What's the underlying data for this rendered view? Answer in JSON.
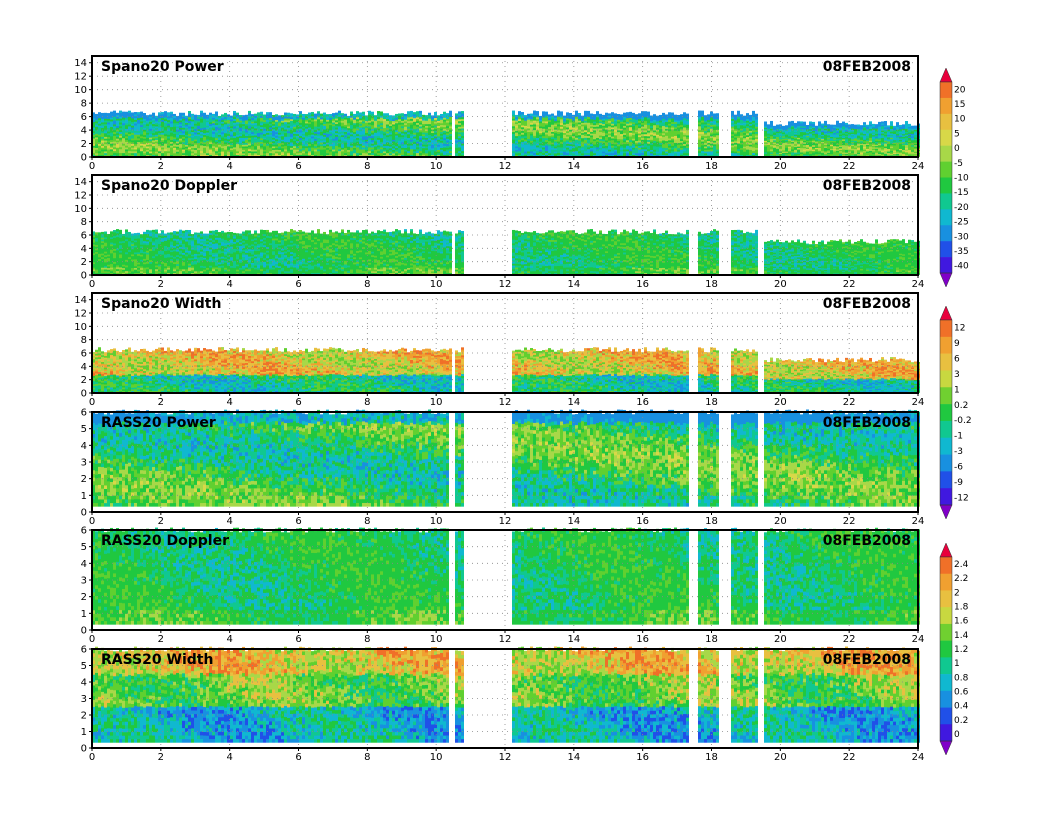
{
  "chart_data": [
    {
      "type": "heatmap",
      "title": "Spano20  Power",
      "date": "08FEB2008",
      "xlim": [
        0,
        24
      ],
      "ylim": [
        0,
        15
      ],
      "xticks": [
        0,
        2,
        4,
        6,
        8,
        10,
        12,
        14,
        16,
        18,
        20,
        22,
        24
      ],
      "yticks": [
        0,
        2,
        4,
        6,
        8,
        10,
        12,
        14
      ],
      "grid": true,
      "top_height": 6.5,
      "data_gaps": [
        [
          10.4,
          10.5
        ],
        [
          10.75,
          12.2
        ],
        [
          17.3,
          17.55
        ],
        [
          18.2,
          18.5
        ],
        [
          19.3,
          19.45
        ]
      ],
      "colorbar": "power_scale"
    },
    {
      "type": "heatmap",
      "title": "Spano20  Doppler",
      "date": "08FEB2008",
      "xlim": [
        0,
        24
      ],
      "ylim": [
        0,
        15
      ],
      "xticks": [
        0,
        2,
        4,
        6,
        8,
        10,
        12,
        14,
        16,
        18,
        20,
        22,
        24
      ],
      "yticks": [
        0,
        2,
        4,
        6,
        8,
        10,
        12,
        14
      ],
      "grid": true,
      "top_height": 6.5,
      "data_gaps": [
        [
          10.4,
          10.5
        ],
        [
          10.75,
          12.2
        ],
        [
          17.3,
          17.55
        ],
        [
          18.2,
          18.5
        ],
        [
          19.3,
          19.45
        ]
      ],
      "colorbar": "power_scale"
    },
    {
      "type": "heatmap",
      "title": "Spano20  Width",
      "date": "08FEB2008",
      "xlim": [
        0,
        24
      ],
      "ylim": [
        0,
        15
      ],
      "xticks": [
        0,
        2,
        4,
        6,
        8,
        10,
        12,
        14,
        16,
        18,
        20,
        22,
        24
      ],
      "yticks": [
        0,
        2,
        4,
        6,
        8,
        10,
        12,
        14
      ],
      "grid": true,
      "top_height": 6.5,
      "data_gaps": [
        [
          10.4,
          10.5
        ],
        [
          10.75,
          12.2
        ],
        [
          17.3,
          17.55
        ],
        [
          18.2,
          18.5
        ],
        [
          19.3,
          19.45
        ]
      ],
      "colorbar": "doppler_scale"
    },
    {
      "type": "heatmap",
      "title": "RASS20  Power",
      "date": "08FEB2008",
      "xlim": [
        0,
        24
      ],
      "ylim": [
        0,
        6
      ],
      "xticks": [
        0,
        2,
        4,
        6,
        8,
        10,
        12,
        14,
        16,
        18,
        20,
        22,
        24
      ],
      "yticks": [
        0,
        1,
        2,
        3,
        4,
        5,
        6
      ],
      "grid": true,
      "top_height": 6,
      "data_gaps": [
        [
          10.3,
          10.5
        ],
        [
          10.75,
          12.2
        ],
        [
          17.3,
          17.55
        ],
        [
          18.2,
          18.5
        ],
        [
          19.3,
          19.45
        ]
      ],
      "colorbar": "doppler_scale"
    },
    {
      "type": "heatmap",
      "title": "RASS20  Doppler",
      "date": "08FEB2008",
      "xlim": [
        0,
        24
      ],
      "ylim": [
        0,
        6
      ],
      "xticks": [
        0,
        2,
        4,
        6,
        8,
        10,
        12,
        14,
        16,
        18,
        20,
        22,
        24
      ],
      "yticks": [
        0,
        1,
        2,
        3,
        4,
        5,
        6
      ],
      "grid": true,
      "top_height": 6,
      "data_gaps": [
        [
          10.3,
          10.5
        ],
        [
          10.75,
          12.2
        ],
        [
          17.3,
          17.55
        ],
        [
          18.2,
          18.5
        ],
        [
          19.3,
          19.45
        ]
      ],
      "colorbar": "width_scale"
    },
    {
      "type": "heatmap",
      "title": "RASS20  Width",
      "date": "08FEB2008",
      "xlim": [
        0,
        24
      ],
      "ylim": [
        0,
        6
      ],
      "xticks": [
        0,
        2,
        4,
        6,
        8,
        10,
        12,
        14,
        16,
        18,
        20,
        22,
        24
      ],
      "yticks": [
        0,
        1,
        2,
        3,
        4,
        5,
        6
      ],
      "grid": true,
      "top_height": 6,
      "data_gaps": [
        [
          10.3,
          10.5
        ],
        [
          10.75,
          12.2
        ],
        [
          17.3,
          17.55
        ],
        [
          18.2,
          18.5
        ],
        [
          19.3,
          19.45
        ]
      ],
      "colorbar": "width_scale"
    }
  ],
  "colorbars": {
    "power_scale": {
      "labels": [
        "20",
        "15",
        "10",
        "5",
        "0",
        "-5",
        "-10",
        "-15",
        "-20",
        "-25",
        "-30",
        "-35",
        "-40"
      ],
      "colors": [
        "#e8003c",
        "#f07028",
        "#f0a030",
        "#e8c040",
        "#d8d848",
        "#a8d848",
        "#60d030",
        "#20c840",
        "#10c890",
        "#10b8d0",
        "#1890e0",
        "#2050e8",
        "#4018e0",
        "#8000c8"
      ]
    },
    "doppler_scale": {
      "labels": [
        "12",
        "9",
        "6",
        "3",
        "1",
        "0.2",
        "-0.2",
        "-1",
        "-3",
        "-6",
        "-9",
        "-12"
      ],
      "colors": [
        "#e8003c",
        "#f07028",
        "#f0a030",
        "#e8c040",
        "#c8d840",
        "#70d030",
        "#20c840",
        "#10c890",
        "#10b8d0",
        "#1890e0",
        "#2050e8",
        "#4018e0",
        "#8000c8"
      ]
    },
    "width_scale": {
      "labels": [
        "2.4",
        "2.2",
        "2",
        "1.8",
        "1.6",
        "1.4",
        "1.2",
        "1",
        "0.8",
        "0.6",
        "0.4",
        "0.2",
        "0"
      ],
      "colors": [
        "#e8003c",
        "#f07028",
        "#f0a030",
        "#e8c040",
        "#c8d840",
        "#70d030",
        "#20c840",
        "#10c890",
        "#10b8d0",
        "#1890e0",
        "#2050e8",
        "#4018e0",
        "#8000c8"
      ]
    }
  }
}
